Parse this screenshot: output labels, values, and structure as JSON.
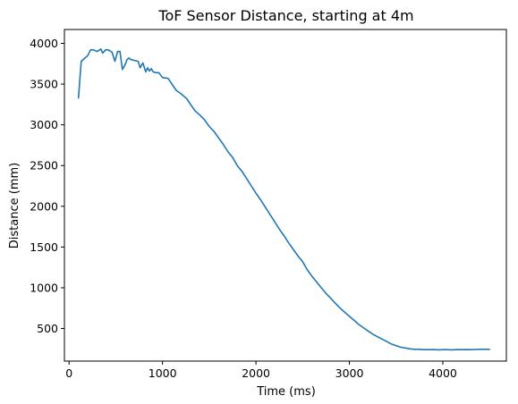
{
  "chart_data": {
    "type": "line",
    "title": "ToF Sensor Distance, starting at 4m",
    "xlabel": "Time (ms)",
    "ylabel": "Distance (mm)",
    "xlim": [
      -50,
      4680
    ],
    "ylim": [
      100,
      4170
    ],
    "xticks": [
      0,
      1000,
      2000,
      3000,
      4000
    ],
    "yticks": [
      500,
      1000,
      1500,
      2000,
      2500,
      3000,
      3500,
      4000
    ],
    "grid": false,
    "colors": {
      "line": "#1f77b4",
      "axis": "#000000"
    },
    "series": [
      {
        "x": [
          100,
          130,
          170,
          200,
          230,
          260,
          300,
          340,
          360,
          390,
          420,
          460,
          490,
          520,
          545,
          570,
          600,
          620,
          640,
          660,
          700,
          740,
          760,
          790,
          820,
          840,
          860,
          880,
          900,
          930,
          960,
          1000,
          1060,
          1100,
          1150,
          1200,
          1260,
          1300,
          1350,
          1400,
          1450,
          1500,
          1550,
          1600,
          1650,
          1700,
          1750,
          1800,
          1850,
          1900,
          1950,
          2000,
          2050,
          2100,
          2150,
          2200,
          2250,
          2300,
          2350,
          2400,
          2450,
          2500,
          2550,
          2600,
          2650,
          2700,
          2750,
          2800,
          2850,
          2900,
          2950,
          3000,
          3050,
          3100,
          3150,
          3200,
          3250,
          3300,
          3350,
          3400,
          3450,
          3500,
          3550,
          3600,
          3650,
          3700,
          3750,
          3800,
          3850,
          3900,
          3950,
          4000,
          4050,
          4100,
          4150,
          4200,
          4250,
          4300,
          4350,
          4400,
          4450,
          4500
        ],
        "y": [
          3330,
          3780,
          3820,
          3850,
          3920,
          3920,
          3900,
          3930,
          3880,
          3920,
          3920,
          3890,
          3780,
          3900,
          3900,
          3680,
          3740,
          3800,
          3820,
          3800,
          3790,
          3780,
          3700,
          3760,
          3650,
          3700,
          3660,
          3690,
          3650,
          3640,
          3640,
          3580,
          3570,
          3500,
          3420,
          3380,
          3320,
          3250,
          3170,
          3120,
          3060,
          2980,
          2920,
          2840,
          2760,
          2670,
          2600,
          2500,
          2430,
          2340,
          2250,
          2160,
          2080,
          1990,
          1900,
          1810,
          1720,
          1640,
          1550,
          1470,
          1390,
          1320,
          1220,
          1140,
          1070,
          1000,
          930,
          870,
          810,
          750,
          700,
          650,
          600,
          550,
          510,
          470,
          430,
          400,
          370,
          340,
          310,
          290,
          270,
          260,
          250,
          245,
          245,
          240,
          240,
          242,
          238,
          240,
          240,
          238,
          242,
          240,
          242,
          240,
          243,
          245,
          245,
          245
        ]
      }
    ]
  }
}
